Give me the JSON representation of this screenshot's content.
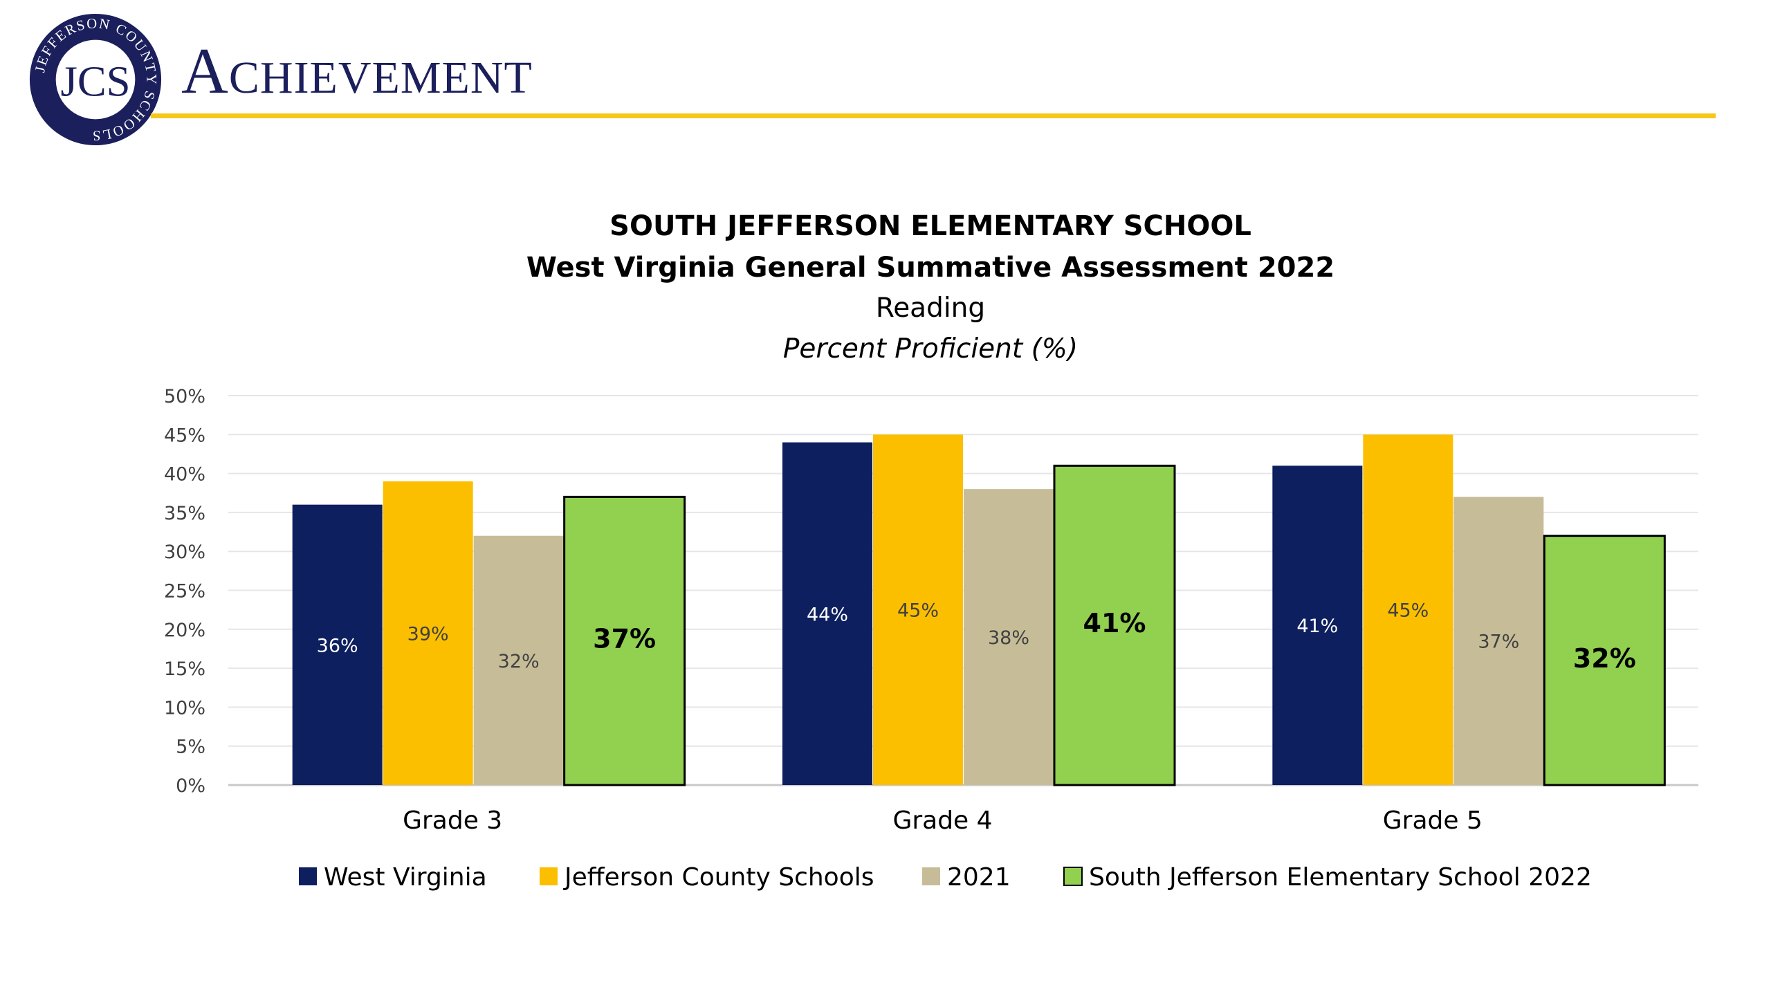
{
  "slide": {
    "title": "Achievement",
    "logo": {
      "monogram": "JCS",
      "ring_text": "JEFFERSON COUNTY SCHOOLS",
      "color": "#1b1f5c"
    },
    "accent_color": "#f6c61b"
  },
  "chart_data": {
    "type": "bar",
    "title_lines": [
      "SOUTH JEFFERSON ELEMENTARY SCHOOL",
      "West Virginia General Summative Assessment 2022",
      "Reading",
      "Percent Proficient (%)"
    ],
    "categories": [
      "Grade 3",
      "Grade 4",
      "Grade 5"
    ],
    "series": [
      {
        "name": "West Virginia",
        "values": [
          36,
          44,
          41
        ],
        "labels": [
          "36%",
          "44%",
          "41%"
        ],
        "color": "#0d1f5e",
        "label_color": "#ffffff"
      },
      {
        "name": "Jefferson County Schools",
        "values": [
          39,
          45,
          45
        ],
        "labels": [
          "39%",
          "45%",
          "45%"
        ],
        "color": "#fcbf00",
        "label_color": "#404040"
      },
      {
        "name": "2021",
        "values": [
          32,
          38,
          37
        ],
        "labels": [
          "32%",
          "38%",
          "37%"
        ],
        "color": "#c6bd98",
        "label_color": "#404040"
      },
      {
        "name": "South Jefferson Elementary School 2022",
        "values": [
          37,
          41,
          32
        ],
        "labels": [
          "37%",
          "41%",
          "32%"
        ],
        "color": "#92d050",
        "label_color": "#000000",
        "outlined": true,
        "bold_labels": true
      }
    ],
    "y_ticks": [
      "0%",
      "5%",
      "10%",
      "15%",
      "20%",
      "25%",
      "30%",
      "35%",
      "40%",
      "45%",
      "50%"
    ],
    "ylim": [
      0,
      50
    ],
    "y_step": 5,
    "grid": true,
    "legend_position": "bottom"
  }
}
